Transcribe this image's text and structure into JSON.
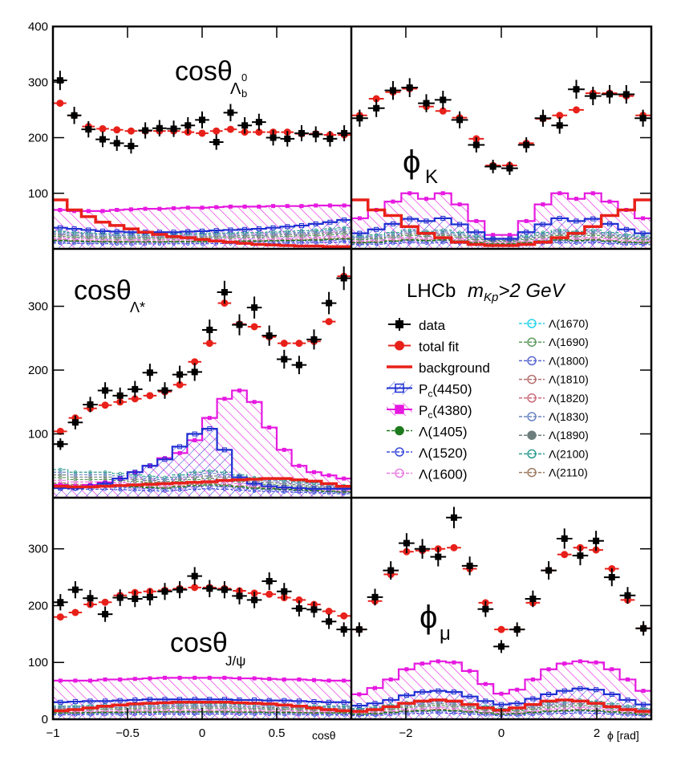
{
  "figure": {
    "legend_title_prefix": "LHCb",
    "legend_title_var": "m",
    "legend_title_sub": "Kp",
    "legend_title_suffix": ">2 GeV"
  },
  "colors": {
    "data": "#000000",
    "fit": "#e8201a",
    "background": "#e8201a",
    "pc4450": "#1f2fd1",
    "pc4380": "#e619e0",
    "lam1405": "#1d7a1d",
    "lam1520": "#3b4bd8",
    "lam1600": "#e77ae2",
    "lam1670": "#2ad4e8",
    "lam1690": "#5f9b5f",
    "lam1800": "#5a67d0",
    "lam1810": "#b57070",
    "lam1820": "#cc6d7c",
    "lam1830": "#6a84c2",
    "lam1890": "#6e7e7e",
    "lam2100": "#2f9c8f",
    "lam2110": "#9c7a62"
  },
  "chart_data": [
    {
      "id": "costhLb",
      "type": "histogram",
      "title_main": "cosθ",
      "title_sub": "Λ",
      "title_sub_sub": "b",
      "title_sub_sup": "0",
      "xlim": [
        -1,
        1
      ],
      "ylim": [
        0,
        400
      ],
      "yticks": [
        100,
        200,
        300,
        400
      ],
      "yticklabels": [
        "100",
        "200",
        "300",
        "400"
      ],
      "data": [
        303,
        240,
        215,
        197,
        190,
        185,
        213,
        217,
        216,
        222,
        232,
        192,
        245,
        222,
        228,
        200,
        198,
        208,
        206,
        198,
        208
      ],
      "fit": [
        262,
        240,
        220,
        216,
        214,
        212,
        212,
        212,
        212,
        210,
        208,
        212,
        215,
        210,
        210,
        210,
        210,
        207,
        207,
        205,
        205
      ],
      "background": [
        88,
        70,
        58,
        48,
        42,
        36,
        30,
        26,
        22,
        20,
        17,
        14,
        12,
        10,
        8,
        7,
        6,
        5,
        5,
        4,
        4
      ],
      "pc4380": [
        70,
        68,
        68,
        68,
        70,
        71,
        72,
        72,
        73,
        74,
        74,
        75,
        76,
        76,
        76,
        77,
        77,
        77,
        78,
        78,
        78
      ],
      "pc4450": [
        38,
        36,
        34,
        32,
        31,
        30,
        30,
        30,
        30,
        31,
        32,
        33,
        34,
        35,
        36,
        38,
        40,
        42,
        45,
        48,
        52
      ],
      "lambdas": [
        30,
        28,
        27,
        26,
        25,
        25,
        25,
        25,
        26,
        26,
        26,
        27,
        27,
        28,
        28,
        29,
        30,
        31,
        32,
        34,
        36
      ]
    },
    {
      "id": "phiK",
      "type": "histogram",
      "title_main": "ϕ",
      "title_sub": "K",
      "xlim": [
        -3.1416,
        3.1416
      ],
      "ylim": [
        0,
        400
      ],
      "data": [
        235,
        253,
        285,
        290,
        262,
        268,
        232,
        187,
        148,
        145,
        187,
        235,
        222,
        287,
        275,
        278,
        278,
        235
      ],
      "fit": [
        240,
        270,
        282,
        288,
        256,
        248,
        236,
        198,
        150,
        150,
        190,
        234,
        240,
        250,
        280,
        280,
        275,
        240
      ],
      "background": [
        88,
        70,
        60,
        40,
        28,
        20,
        12,
        8,
        6,
        6,
        8,
        12,
        20,
        28,
        40,
        60,
        70,
        88
      ],
      "pc4380": [
        55,
        70,
        85,
        100,
        90,
        100,
        80,
        50,
        25,
        25,
        50,
        80,
        100,
        90,
        100,
        85,
        70,
        55
      ],
      "pc4450": [
        28,
        35,
        45,
        54,
        50,
        55,
        44,
        30,
        18,
        18,
        30,
        44,
        55,
        50,
        54,
        45,
        35,
        28
      ],
      "lambdas": [
        22,
        24,
        28,
        32,
        30,
        32,
        28,
        22,
        18,
        18,
        22,
        28,
        32,
        30,
        32,
        28,
        24,
        22
      ]
    },
    {
      "id": "costhLs",
      "type": "histogram",
      "title_main": "cosθ",
      "title_sub": "Λ*",
      "xlim": [
        -1,
        1
      ],
      "ylim": [
        0,
        390
      ],
      "yticks": [
        100,
        200,
        300
      ],
      "yticklabels": [
        "100",
        "200",
        "300"
      ],
      "data": [
        84,
        118,
        146,
        168,
        160,
        170,
        196,
        168,
        193,
        197,
        263,
        322,
        271,
        298,
        254,
        217,
        208,
        248,
        305,
        344
      ],
      "fit": [
        104,
        125,
        140,
        145,
        150,
        155,
        160,
        166,
        177,
        213,
        242,
        305,
        272,
        268,
        252,
        242,
        242,
        245,
        276,
        347
      ],
      "background": [
        18,
        17,
        17,
        18,
        19,
        20,
        21,
        22,
        23,
        24,
        25,
        27,
        28,
        29,
        30,
        30,
        28,
        26,
        22,
        18
      ],
      "pc4380": [
        20,
        18,
        20,
        24,
        30,
        40,
        50,
        62,
        70,
        90,
        125,
        155,
        168,
        150,
        110,
        75,
        50,
        40,
        35,
        30
      ],
      "pc4450": [
        15,
        15,
        18,
        22,
        30,
        40,
        50,
        60,
        80,
        100,
        108,
        75,
        32,
        22,
        18,
        16,
        15,
        14,
        14,
        14
      ],
      "lambdas": [
        42,
        38,
        38,
        38,
        36,
        34,
        32,
        30,
        34,
        38,
        40,
        38,
        34,
        30,
        28,
        26,
        24,
        22,
        20,
        18
      ]
    },
    {
      "id": "costhJpsi",
      "type": "histogram",
      "title_main": "cosθ",
      "title_sub": "J/ψ",
      "xlim": [
        -1,
        1
      ],
      "ylim": [
        0,
        390
      ],
      "yticks": [
        0,
        100,
        200,
        300
      ],
      "yticklabels": [
        "0",
        "100",
        "200",
        "300"
      ],
      "xticks": [
        -1,
        -0.5,
        0,
        0.5
      ],
      "xticklabels": [
        "−1",
        "−0.5",
        "0",
        "0.5"
      ],
      "xlabel": "cosθ",
      "data": [
        206,
        228,
        213,
        185,
        214,
        212,
        215,
        225,
        228,
        252,
        230,
        228,
        217,
        210,
        243,
        225,
        195,
        193,
        172,
        158
      ],
      "fit": [
        180,
        188,
        202,
        206,
        218,
        223,
        225,
        227,
        230,
        232,
        232,
        230,
        226,
        222,
        220,
        214,
        210,
        202,
        190,
        182
      ],
      "background": [
        15,
        17,
        20,
        23,
        25,
        27,
        28,
        29,
        30,
        30,
        30,
        30,
        29,
        28,
        27,
        25,
        23,
        20,
        17,
        15
      ],
      "pc4380": [
        68,
        68,
        68,
        70,
        70,
        71,
        72,
        73,
        73,
        73,
        73,
        73,
        72,
        72,
        71,
        70,
        70,
        69,
        68,
        68
      ],
      "pc4450": [
        30,
        31,
        32,
        32,
        33,
        34,
        35,
        35,
        35,
        35,
        35,
        35,
        34,
        34,
        33,
        33,
        32,
        31,
        30,
        30
      ],
      "lambdas": [
        22,
        22,
        23,
        24,
        24,
        25,
        25,
        26,
        26,
        26,
        26,
        26,
        25,
        25,
        24,
        24,
        23,
        22,
        22,
        22
      ]
    },
    {
      "id": "phimu",
      "type": "histogram",
      "title_main": "ϕ",
      "title_sub": "μ",
      "xlim": [
        -3.1416,
        3.1416
      ],
      "ylim": [
        0,
        390
      ],
      "xticks": [
        -2,
        0,
        2
      ],
      "xticklabels": [
        "−2",
        "0",
        "2"
      ],
      "xlabel": "ϕ [rad]",
      "data": [
        158,
        215,
        262,
        310,
        300,
        286,
        355,
        270,
        194,
        128,
        158,
        212,
        262,
        318,
        288,
        314,
        250,
        218,
        160
      ],
      "fit": [
        158,
        208,
        255,
        295,
        297,
        300,
        302,
        265,
        205,
        158,
        158,
        205,
        262,
        290,
        302,
        298,
        265,
        210,
        160
      ],
      "background": [
        14,
        17,
        22,
        28,
        32,
        34,
        32,
        26,
        20,
        16,
        20,
        26,
        32,
        34,
        32,
        28,
        22,
        17,
        14
      ],
      "pc4380": [
        44,
        55,
        70,
        88,
        98,
        102,
        100,
        85,
        62,
        45,
        52,
        70,
        88,
        98,
        102,
        100,
        88,
        70,
        50
      ],
      "pc4450": [
        24,
        28,
        34,
        42,
        48,
        50,
        48,
        40,
        32,
        26,
        28,
        36,
        44,
        50,
        54,
        52,
        44,
        34,
        26
      ],
      "lambdas": [
        18,
        20,
        24,
        28,
        30,
        32,
        30,
        26,
        22,
        18,
        20,
        24,
        28,
        30,
        32,
        30,
        26,
        22,
        18
      ]
    }
  ],
  "legend": {
    "left": [
      {
        "key": "data",
        "label": "data"
      },
      {
        "key": "fit",
        "label": "total fit"
      },
      {
        "key": "background",
        "label": "background"
      },
      {
        "key": "pc4450",
        "label": "P",
        "sub": "c",
        "tail": "(4450)"
      },
      {
        "key": "pc4380",
        "label": "P",
        "sub": "c",
        "tail": "(4380)"
      },
      {
        "key": "lam1405",
        "label": "Λ(1405)"
      },
      {
        "key": "lam1520",
        "label": "Λ(1520)"
      },
      {
        "key": "lam1600",
        "label": "Λ(1600)"
      }
    ],
    "right": [
      {
        "key": "lam1670",
        "label": "Λ(1670)"
      },
      {
        "key": "lam1690",
        "label": "Λ(1690)"
      },
      {
        "key": "lam1800",
        "label": "Λ(1800)"
      },
      {
        "key": "lam1810",
        "label": "Λ(1810)"
      },
      {
        "key": "lam1820",
        "label": "Λ(1820)"
      },
      {
        "key": "lam1830",
        "label": "Λ(1830)"
      },
      {
        "key": "lam1890",
        "label": "Λ(1890)"
      },
      {
        "key": "lam2100",
        "label": "Λ(2100)"
      },
      {
        "key": "lam2110",
        "label": "Λ(2110)"
      }
    ]
  }
}
